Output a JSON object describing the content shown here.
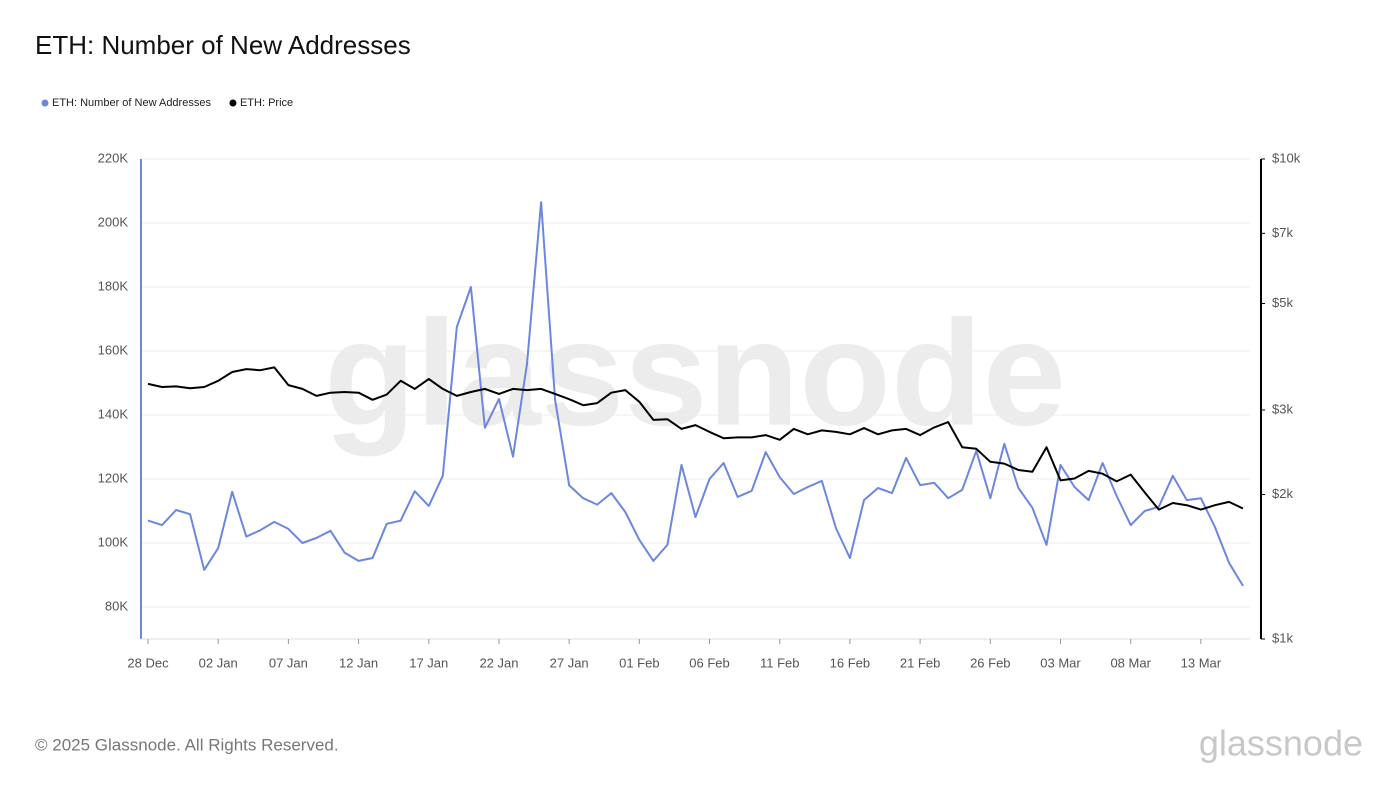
{
  "chart_data": {
    "type": "line",
    "title": "ETH: Number of New Addresses",
    "watermark": "glassnode",
    "footer": "© 2025 Glassnode. All Rights Reserved.",
    "categories": [
      "28 Dec",
      null,
      null,
      null,
      null,
      "02 Jan",
      null,
      null,
      null,
      null,
      "07 Jan",
      null,
      null,
      null,
      null,
      "12 Jan",
      null,
      null,
      null,
      null,
      "17 Jan",
      null,
      null,
      null,
      null,
      "22 Jan",
      null,
      null,
      null,
      null,
      "27 Jan",
      null,
      null,
      null,
      null,
      "01 Feb",
      null,
      null,
      null,
      null,
      "06 Feb",
      null,
      null,
      null,
      null,
      "11 Feb",
      null,
      null,
      null,
      null,
      "16 Feb",
      null,
      null,
      null,
      null,
      "21 Feb",
      null,
      null,
      null,
      null,
      "26 Feb",
      null,
      null,
      null,
      null,
      "03 Mar",
      null,
      null,
      null,
      null,
      "08 Mar",
      null,
      null,
      null,
      null,
      "13 Mar",
      null,
      null,
      null
    ],
    "series": [
      {
        "name": "ETH: Number of New Addresses",
        "color": "#6b87e0",
        "axis": "y",
        "values": [
          107000,
          105600,
          110300,
          109000,
          91600,
          98400,
          116000,
          102000,
          104000,
          106600,
          104400,
          100000,
          101600,
          103800,
          97000,
          94400,
          95300,
          106000,
          107000,
          116200,
          111600,
          121000,
          167500,
          180000,
          136000,
          145000,
          127000,
          156000,
          206500,
          144700,
          118000,
          114000,
          112000,
          115600,
          109700,
          101000,
          94400,
          99400,
          124400,
          108100,
          120000,
          125000,
          114400,
          116300,
          128400,
          120600,
          115300,
          117500,
          119400,
          104700,
          95300,
          113400,
          117200,
          115600,
          126600,
          118100,
          118800,
          114000,
          116600,
          128800,
          114000,
          131000,
          117200,
          111000,
          99400,
          124400,
          117500,
          113400,
          125000,
          114700,
          105600,
          110000,
          111300,
          121000,
          113400,
          114000,
          105000,
          93800,
          86600
        ]
      },
      {
        "name": "ETH: Price",
        "color": "#000000",
        "axis": "y2",
        "values": [
          3400,
          3350,
          3360,
          3330,
          3350,
          3450,
          3600,
          3650,
          3630,
          3680,
          3380,
          3320,
          3210,
          3260,
          3270,
          3260,
          3150,
          3230,
          3450,
          3320,
          3480,
          3320,
          3210,
          3270,
          3320,
          3240,
          3320,
          3300,
          3320,
          3240,
          3160,
          3070,
          3100,
          3260,
          3300,
          3120,
          2860,
          2870,
          2740,
          2790,
          2700,
          2620,
          2630,
          2630,
          2660,
          2600,
          2740,
          2670,
          2720,
          2700,
          2670,
          2750,
          2670,
          2720,
          2740,
          2660,
          2760,
          2830,
          2510,
          2490,
          2340,
          2320,
          2250,
          2230,
          2510,
          2140,
          2160,
          2240,
          2210,
          2130,
          2200,
          2020,
          1860,
          1920,
          1900,
          1860,
          1900,
          1930,
          1870
        ]
      }
    ],
    "ylim": [
      70000,
      220000
    ],
    "yticks": [
      {
        "value": 80000,
        "label": "80K"
      },
      {
        "value": 100000,
        "label": "100K"
      },
      {
        "value": 120000,
        "label": "120K"
      },
      {
        "value": 140000,
        "label": "140K"
      },
      {
        "value": 160000,
        "label": "160K"
      },
      {
        "value": 180000,
        "label": "180K"
      },
      {
        "value": 200000,
        "label": "200K"
      },
      {
        "value": 220000,
        "label": "220K"
      }
    ],
    "y2lim": [
      1000,
      10000
    ],
    "y2scale": "log",
    "y2ticks": [
      {
        "value": 1000,
        "label": "$1k"
      },
      {
        "value": 2000,
        "label": "$2k"
      },
      {
        "value": 3000,
        "label": "$3k"
      },
      {
        "value": 5000,
        "label": "$5k"
      },
      {
        "value": 7000,
        "label": "$7k"
      },
      {
        "value": 10000,
        "label": "$10k"
      }
    ],
    "grid": true,
    "legend": "top-left"
  }
}
